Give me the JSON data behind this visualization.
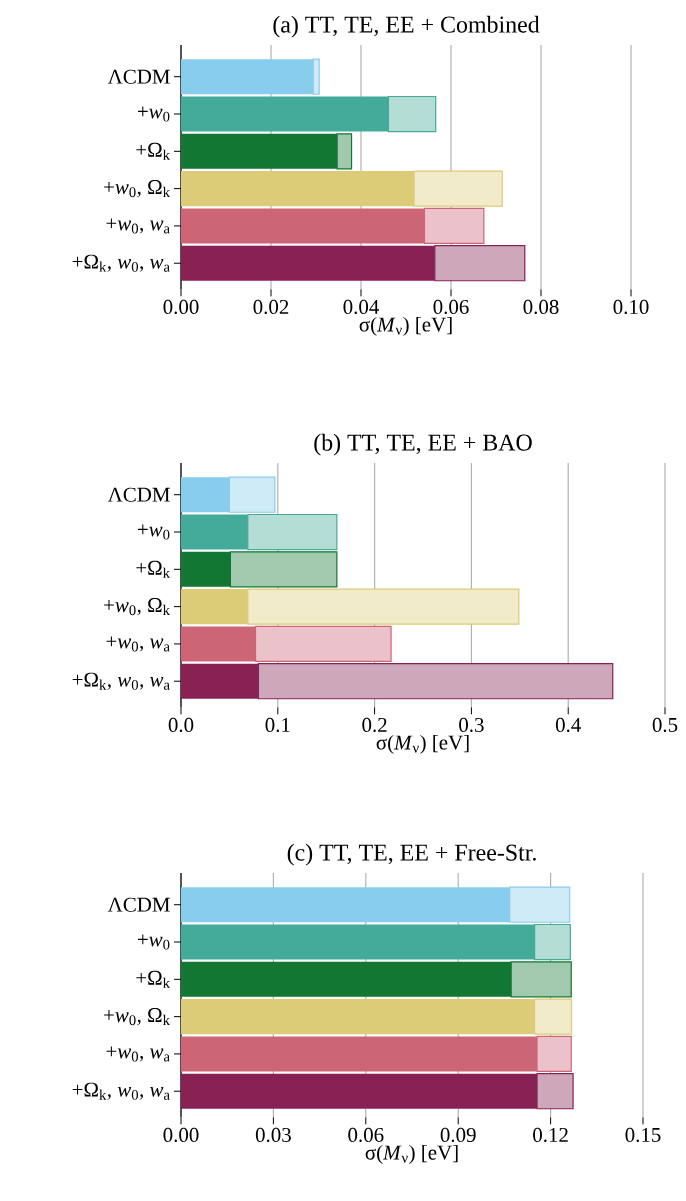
{
  "chart_data": [
    {
      "type": "bar",
      "orientation": "horizontal",
      "stacked": true,
      "grid": "x",
      "title": "(a) TT, TE, EE + Combined",
      "xlabel": "σ(*M*$_{ν}$) [eV]",
      "categories": [
        "ΛCDM",
        "+*w*$_{0}$",
        "+Ω$_{k}$",
        "+*w*$_{0}$, Ω$_{k}$",
        "+*w*$_{0}$, *w*$_{a}$",
        "+Ω$_{k}$, *w*$_{0}$, *w*$_{a}$"
      ],
      "xlim": [
        0,
        0.1
      ],
      "xticks": [
        {
          "value": 0,
          "label": "0.00"
        },
        {
          "value": 0.02,
          "label": "0.02"
        },
        {
          "value": 0.04,
          "label": "0.04"
        },
        {
          "value": 0.06,
          "label": "0.06"
        },
        {
          "value": 0.08,
          "label": "0.08"
        },
        {
          "value": 0.1,
          "label": "0.10"
        }
      ],
      "series": [
        {
          "colors": [
            "#88ccee",
            "#44aa99",
            "#117733",
            "#ddcc77",
            "#cc6677",
            "#882255"
          ],
          "values": [
            0.0294,
            0.0461,
            0.0347,
            0.0518,
            0.0541,
            0.0564
          ]
        },
        {
          "colors": [
            "#88ccee",
            "#44aa99",
            "#117733",
            "#ddcc77",
            "#cc6677",
            "#882255"
          ],
          "values": [
            0.0013,
            0.0105,
            0.0032,
            0.0196,
            0.0132,
            0.02
          ]
        }
      ]
    },
    {
      "type": "bar",
      "orientation": "horizontal",
      "stacked": true,
      "grid": "x",
      "title": "(b) TT, TE, EE + BAO",
      "xlabel": "σ(*M*$_{ν}$) [eV]",
      "categories": [
        "ΛCDM",
        "+*w*$_{0}$",
        "+Ω$_{k}$",
        "+*w*$_{0}$, Ω$_{k}$",
        "+*w*$_{0}$, *w*$_{a}$",
        "+Ω$_{k}$, *w*$_{0}$, *w*$_{a}$"
      ],
      "xlim": [
        0,
        0.5
      ],
      "xticks": [
        {
          "value": 0,
          "label": "0.0"
        },
        {
          "value": 0.1,
          "label": "0.1"
        },
        {
          "value": 0.2,
          "label": "0.2"
        },
        {
          "value": 0.3,
          "label": "0.3"
        },
        {
          "value": 0.4,
          "label": "0.4"
        },
        {
          "value": 0.5,
          "label": "0.5"
        }
      ],
      "series": [
        {
          "colors": [
            "#88ccee",
            "#44aa99",
            "#117733",
            "#ddcc77",
            "#cc6677",
            "#882255"
          ],
          "values": [
            0.05,
            0.069,
            0.051,
            0.069,
            0.077,
            0.08
          ]
        },
        {
          "colors": [
            "#88ccee",
            "#44aa99",
            "#117733",
            "#ddcc77",
            "#cc6677",
            "#882255"
          ],
          "values": [
            0.047,
            0.092,
            0.11,
            0.28,
            0.14,
            0.366
          ]
        }
      ]
    },
    {
      "type": "bar",
      "orientation": "horizontal",
      "stacked": true,
      "grid": "x",
      "title": "(c) TT, TE, EE + Free-Str.",
      "xlabel": "σ(*M*$_{ν}$) [eV]",
      "categories": [
        "ΛCDM",
        "+*w*$_{0}$",
        "+Ω$_{k}$",
        "+*w*$_{0}$, Ω$_{k}$",
        "+*w*$_{0}$, *w*$_{a}$",
        "+Ω$_{k}$, *w*$_{0}$, *w*$_{a}$"
      ],
      "xlim": [
        0,
        0.15
      ],
      "xticks": [
        {
          "value": 0,
          "label": "0.00"
        },
        {
          "value": 0.03,
          "label": "0.03"
        },
        {
          "value": 0.06,
          "label": "0.06"
        },
        {
          "value": 0.09,
          "label": "0.09"
        },
        {
          "value": 0.12,
          "label": "0.12"
        },
        {
          "value": 0.15,
          "label": "0.15"
        }
      ],
      "series": [
        {
          "colors": [
            "#88ccee",
            "#44aa99",
            "#117733",
            "#ddcc77",
            "#cc6677",
            "#882255"
          ],
          "values": [
            0.1067,
            0.1148,
            0.1072,
            0.1148,
            0.1156,
            0.1156
          ]
        },
        {
          "colors": [
            "#88ccee",
            "#44aa99",
            "#117733",
            "#ddcc77",
            "#cc6677",
            "#882255"
          ],
          "values": [
            0.0195,
            0.0116,
            0.0195,
            0.012,
            0.0111,
            0.0117
          ]
        }
      ]
    }
  ]
}
